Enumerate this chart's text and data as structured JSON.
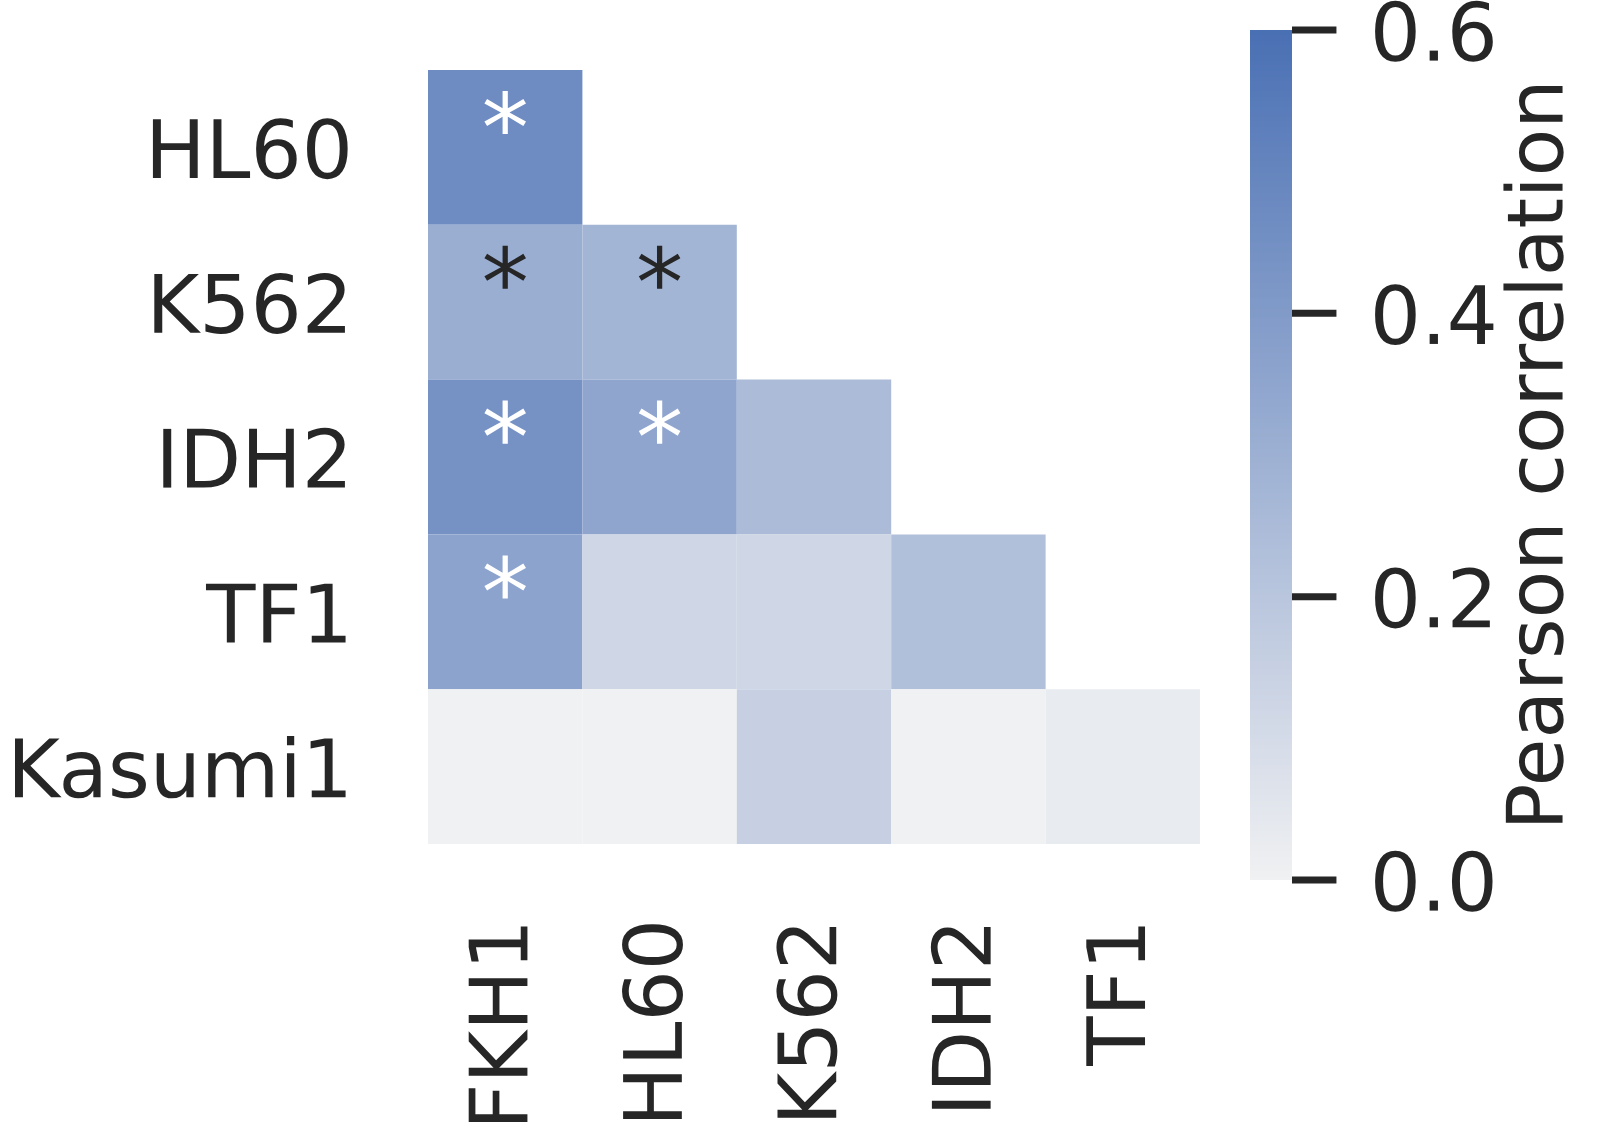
{
  "chart_data": {
    "type": "heatmap",
    "categories": [
      "FKH1",
      "HL60",
      "K562",
      "IDH2",
      "TF1"
    ],
    "y_categories": [
      "HL60",
      "K562",
      "IDH2",
      "TF1",
      "Kasumi1"
    ],
    "cells": [
      [
        0.47,
        null,
        null,
        null,
        null
      ],
      [
        0.31,
        0.28,
        null,
        null,
        null
      ],
      [
        0.44,
        0.35,
        0.25,
        null,
        null
      ],
      [
        0.36,
        0.12,
        0.12,
        0.23,
        null
      ],
      [
        0.0,
        0.0,
        0.15,
        0.0,
        0.03
      ]
    ],
    "cell_labels": [
      [
        "*",
        null,
        null,
        null,
        null
      ],
      [
        "*",
        "*",
        null,
        null,
        null
      ],
      [
        "*",
        "*",
        null,
        null,
        null
      ],
      [
        "*",
        null,
        null,
        null,
        null
      ],
      [
        null,
        null,
        null,
        null,
        null
      ]
    ],
    "clim": [
      0,
      0.6
    ],
    "cticks": [
      {
        "value": 0,
        "label": "0.0"
      },
      {
        "value": 0.2,
        "label": "0.2"
      },
      {
        "value": 0.4,
        "label": "0.4"
      },
      {
        "value": 0.6,
        "label": "0.6"
      }
    ],
    "clabel": "Pearson correlation"
  }
}
